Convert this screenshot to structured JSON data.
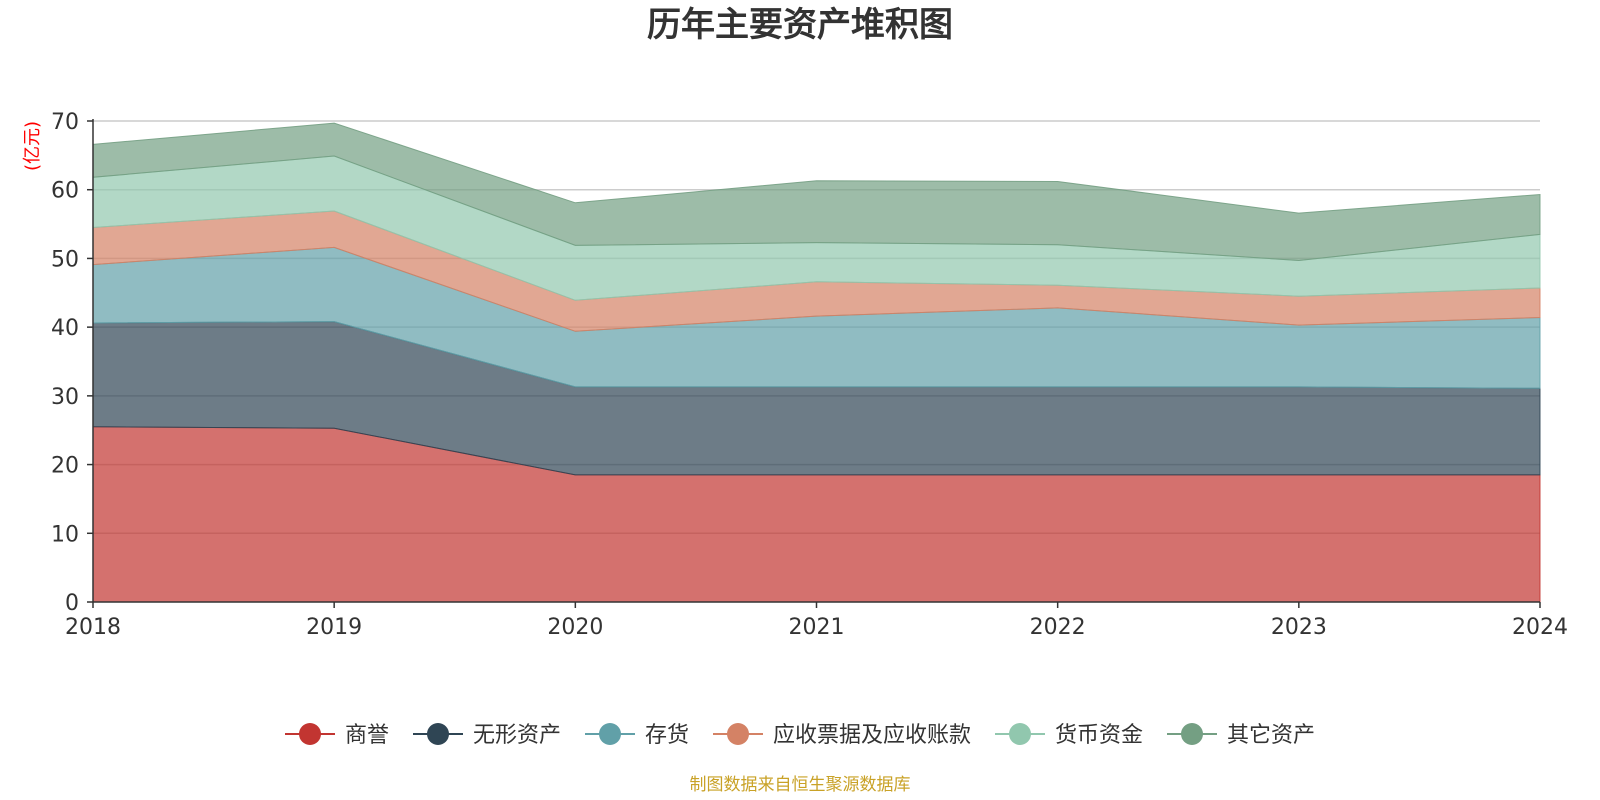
{
  "chart_data": {
    "type": "area",
    "stacked": true,
    "title": "历年主要资产堆积图",
    "unit_label": "(亿元)",
    "source_note": "制图数据来自恒生聚源数据库",
    "x": [
      "2018",
      "2019",
      "2020",
      "2021",
      "2022",
      "2023",
      "2024"
    ],
    "ylim": [
      0,
      70
    ],
    "yticks": [
      0,
      10,
      20,
      30,
      40,
      50,
      60,
      70
    ],
    "grid": true,
    "legend_position": "bottom",
    "series": [
      {
        "name": "商誉",
        "color": "#c23531",
        "values": [
          25.5,
          25.3,
          18.5,
          18.5,
          18.5,
          18.5,
          18.5
        ]
      },
      {
        "name": "无形资产",
        "color": "#2f4554",
        "values": [
          15.1,
          15.5,
          12.8,
          12.8,
          12.8,
          12.8,
          12.6
        ]
      },
      {
        "name": "存货",
        "color": "#61a0a8",
        "values": [
          8.5,
          10.8,
          8.1,
          10.3,
          11.5,
          9.0,
          10.3
        ]
      },
      {
        "name": "应收票据及应收账款",
        "color": "#d48265",
        "values": [
          5.4,
          5.3,
          4.5,
          5.0,
          3.3,
          4.2,
          4.3
        ]
      },
      {
        "name": "货币资金",
        "color": "#91c7ae",
        "values": [
          7.3,
          8.0,
          8.0,
          5.7,
          5.9,
          5.2,
          7.8
        ]
      },
      {
        "name": "其它资产",
        "color": "#749f83",
        "values": [
          4.8,
          4.8,
          6.2,
          9.0,
          9.2,
          6.9,
          5.8
        ]
      }
    ],
    "colors": {
      "title": "#333333",
      "unit_label": "#ff0000",
      "source_note": "#c9a227",
      "grid": "#cccccc",
      "axis": "#333333"
    }
  }
}
